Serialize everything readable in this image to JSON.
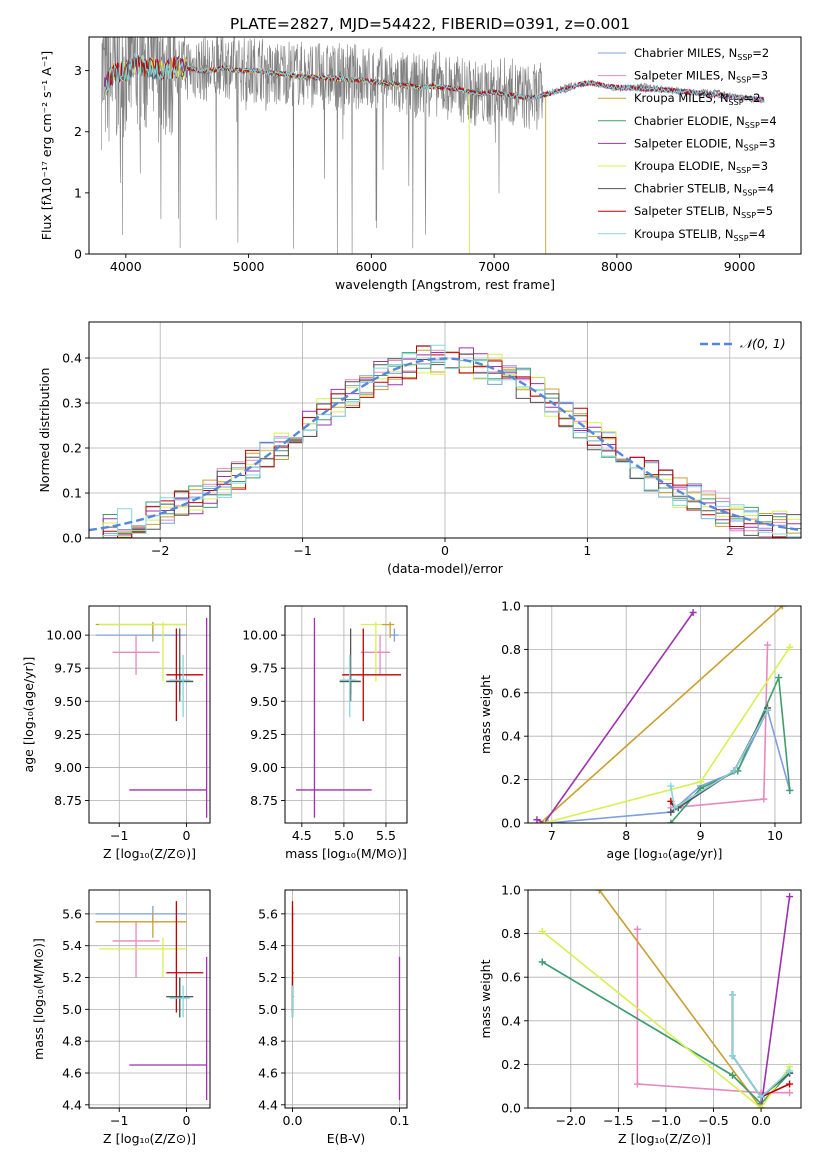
{
  "title": "PLATE=2827, MJD=54422, FIBERID=0391, z=0.001",
  "colors": {
    "Chabrier MILES": "#7f9fe0",
    "Salpeter MILES": "#e888c0",
    "Kroupa MILES": "#c8a030",
    "Chabrier ELODIE": "#3f9f6a",
    "Salpeter ELODIE": "#9f30b0",
    "Kroupa ELODIE": "#d8f050",
    "Chabrier STELIB": "#555555",
    "Salpeter STELIB": "#c00000",
    "Kroupa STELIB": "#80d8e0",
    "data": "#808080",
    "normal": "#5588dd"
  },
  "legend_spectrum": [
    {
      "model": "Chabrier MILES",
      "text": "Chabrier MILES, N",
      "n": "2"
    },
    {
      "model": "Salpeter MILES",
      "text": "Salpeter MILES, N",
      "n": "3"
    },
    {
      "model": "Kroupa MILES",
      "text": "Kroupa MILES, N",
      "n": "2"
    },
    {
      "model": "Chabrier ELODIE",
      "text": "Chabrier ELODIE, N",
      "n": "4"
    },
    {
      "model": "Salpeter ELODIE",
      "text": "Salpeter ELODIE, N",
      "n": "3"
    },
    {
      "model": "Kroupa ELODIE",
      "text": "Kroupa ELODIE, N",
      "n": "3"
    },
    {
      "model": "Chabrier STELIB",
      "text": "Chabrier STELIB, N",
      "n": "4"
    },
    {
      "model": "Salpeter STELIB",
      "text": "Salpeter STELIB, N",
      "n": "5"
    },
    {
      "model": "Kroupa STELIB",
      "text": "Kroupa STELIB, N",
      "n": "4"
    }
  ],
  "legend_subscript": "SSP",
  "legend_normal": "𝒩(0, 1)",
  "chart_data": [
    {
      "id": "spectrum",
      "type": "line",
      "xlabel": "wavelength [Angstrom, rest frame]",
      "ylabel": "Flux [fλ10⁻¹⁷ erg cm⁻² s⁻¹ A⁻¹]",
      "xlim": [
        3700,
        9500
      ],
      "ylim": [
        0,
        3.55
      ],
      "xticks": [
        4000,
        5000,
        6000,
        7000,
        8000,
        9000
      ],
      "yticks": [
        0,
        1,
        2,
        3
      ],
      "data_x": [
        3800,
        3900,
        4000,
        4100,
        4200,
        4300,
        4400,
        4500,
        4600,
        4700,
        4800,
        4900,
        5000,
        5100,
        5200,
        5300,
        5400,
        5500,
        5600,
        5700,
        5800,
        5900,
        6000,
        6100,
        6200,
        6300,
        6400,
        6500,
        6600,
        6700,
        6800,
        6900,
        7000,
        7100,
        7200,
        7300,
        7400,
        7600,
        7800,
        8000,
        8200,
        8400,
        8600,
        8800,
        9000,
        9200
      ],
      "data_y": [
        2.9,
        2.9,
        3.1,
        3.15,
        3.05,
        3.0,
        3.1,
        3.05,
        3.05,
        3.0,
        3.1,
        3.05,
        3.0,
        3.05,
        2.9,
        3.0,
        2.95,
        2.95,
        2.9,
        2.9,
        2.9,
        2.9,
        2.85,
        2.85,
        2.8,
        2.75,
        2.75,
        2.8,
        2.75,
        2.7,
        2.65,
        2.6,
        2.65,
        2.7,
        2.6,
        2.55,
        2.6,
        2.75,
        2.8,
        2.7,
        2.75,
        2.7,
        2.65,
        2.65,
        2.55,
        2.5
      ],
      "model_x": [
        3820,
        3900,
        4000,
        4100,
        4200,
        4300,
        4400,
        4500,
        4600,
        4700,
        4800,
        4900,
        5000,
        5100,
        5200,
        5300,
        5400,
        5500,
        5600,
        5700,
        5800,
        5900,
        6000,
        6100,
        6200,
        6300,
        6400,
        6500,
        6600,
        6700,
        6800,
        6900,
        7000,
        7100,
        7200,
        7300,
        7400,
        7500,
        7600,
        7700,
        7800,
        7900,
        8000,
        8100,
        8200,
        8300,
        8400,
        8500,
        8600,
        8700,
        8800,
        8900,
        9000,
        9100,
        9200
      ],
      "model_y": [
        2.7,
        2.95,
        3.0,
        3.1,
        3.05,
        3.0,
        3.05,
        3.05,
        3.0,
        3.0,
        3.05,
        3.0,
        3.0,
        3.0,
        2.95,
        2.95,
        2.9,
        2.9,
        2.88,
        2.88,
        2.85,
        2.85,
        2.82,
        2.8,
        2.78,
        2.75,
        2.72,
        2.75,
        2.72,
        2.7,
        2.65,
        2.62,
        2.65,
        2.6,
        2.58,
        2.55,
        2.6,
        2.65,
        2.7,
        2.78,
        2.8,
        2.75,
        2.72,
        2.72,
        2.7,
        2.7,
        2.68,
        2.66,
        2.65,
        2.62,
        2.6,
        2.58,
        2.56,
        2.55,
        2.52
      ]
    },
    {
      "id": "residuals",
      "type": "line",
      "xlabel": "(data-model)/error",
      "ylabel": "Normed distribution",
      "xlim": [
        -2.5,
        2.5
      ],
      "ylim": [
        0,
        0.48
      ],
      "xticks": [
        -2,
        -1,
        0,
        1,
        2
      ],
      "yticks": [
        0.0,
        0.1,
        0.2,
        0.3,
        0.4
      ],
      "bin_width": 0.1,
      "normal_curve": {
        "mean": 0,
        "sigma": 1
      }
    },
    {
      "id": "age-vs-Z",
      "type": "scatter",
      "xlabel": "Z [log₁₀(Z/Z⊙)]",
      "ylabel": "age  [log₁₀(age/yr)]",
      "xlim": [
        -1.45,
        0.35
      ],
      "ylim": [
        8.58,
        10.22
      ],
      "xticks": [
        -1,
        0
      ],
      "yticks": [
        8.75,
        9.0,
        9.25,
        9.5,
        9.75,
        10.0
      ]
    },
    {
      "id": "age-vs-mass",
      "type": "scatter",
      "xlabel": "mass [log₁₀(M/M⊙)]",
      "ylabel": "",
      "xlim": [
        4.3,
        5.75
      ],
      "ylim": [
        8.58,
        10.22
      ],
      "xticks": [
        4.5,
        5.0,
        5.5
      ],
      "yticks": [
        8.75,
        9.0,
        9.25,
        9.5,
        9.75,
        10.0
      ]
    },
    {
      "id": "massweight-vs-age",
      "type": "line",
      "xlabel": "age  [log₁₀(age/yr)]",
      "ylabel": "mass weight",
      "xlim": [
        6.68,
        10.35
      ],
      "ylim": [
        0,
        1.0
      ],
      "xticks": [
        7,
        8,
        9,
        10
      ],
      "yticks": [
        0.0,
        0.2,
        0.4,
        0.6,
        0.8,
        1.0
      ]
    },
    {
      "id": "mass-vs-Z",
      "type": "scatter",
      "xlabel": "Z [log₁₀(Z/Z⊙)]",
      "ylabel": "mass [log₁₀(M/M⊙)]",
      "xlim": [
        -1.45,
        0.35
      ],
      "ylim": [
        4.38,
        5.75
      ],
      "xticks": [
        -1,
        0
      ],
      "yticks": [
        4.4,
        4.6,
        4.8,
        5.0,
        5.2,
        5.4,
        5.6
      ]
    },
    {
      "id": "mass-vs-EBV",
      "type": "scatter",
      "xlabel": "E(B-V)",
      "ylabel": "",
      "xlim": [
        -0.007,
        0.107
      ],
      "ylim": [
        4.38,
        5.75
      ],
      "xticks": [
        0.0,
        0.1
      ],
      "yticks": [
        4.4,
        4.6,
        4.8,
        5.0,
        5.2,
        5.4,
        5.6
      ]
    },
    {
      "id": "massweight-vs-Z",
      "type": "line",
      "xlabel": "Z [log₁₀(Z/Z⊙)]",
      "ylabel": "mass weight",
      "xlim": [
        -2.45,
        0.42
      ],
      "ylim": [
        0,
        1.0
      ],
      "xticks": [
        -2.0,
        -1.5,
        -1.0,
        -0.5,
        0.0
      ],
      "yticks": [
        0.0,
        0.2,
        0.4,
        0.6,
        0.8,
        1.0
      ]
    }
  ],
  "models": [
    {
      "name": "Chabrier MILES",
      "age": 10.0,
      "age_lo": 9.95,
      "age_hi": 10.05,
      "Z": -0.5,
      "Z_lo": -1.35,
      "Z_hi": 0.0,
      "mass": 5.6,
      "mass_lo": 5.55,
      "mass_hi": 5.65,
      "ebv": 0.0,
      "ebv_lo": 0.0,
      "ebv_hi": 0.002,
      "ages": [
        6.95,
        8.6,
        9.0,
        9.5,
        9.9,
        10.2
      ],
      "wages": [
        0.0,
        0.05,
        0.17,
        0.24,
        0.52,
        0.15
      ],
      "zs": [
        -2.3,
        -0.3,
        0.0,
        0.3
      ],
      "wzs": [
        0.67,
        0.15,
        0.02,
        0.16
      ]
    },
    {
      "name": "Salpeter MILES",
      "age": 9.87,
      "age_lo": 9.7,
      "age_hi": 10.0,
      "Z": -0.75,
      "Z_lo": -1.1,
      "Z_hi": -0.4,
      "mass": 5.43,
      "mass_lo": 5.2,
      "mass_hi": 5.55,
      "ebv": 0.0,
      "ebv_lo": 0.0,
      "ebv_hi": 0.001,
      "ages": [
        8.6,
        9.85,
        9.9
      ],
      "wages": [
        0.07,
        0.11,
        0.82
      ],
      "zs": [
        -1.3,
        -1.3,
        0.0,
        0.3
      ],
      "wzs": [
        0.82,
        0.11,
        0.07,
        0.07
      ]
    },
    {
      "name": "Kroupa MILES",
      "age": 10.08,
      "age_lo": 9.98,
      "age_hi": 10.1,
      "Z": -0.5,
      "Z_lo": -1.35,
      "Z_hi": 0.0,
      "mass": 5.55,
      "mass_lo": 5.45,
      "mass_hi": 5.6,
      "ebv": 0.0,
      "ebv_lo": 0.0,
      "ebv_hi": 0.001,
      "ages": [
        6.85,
        10.1
      ],
      "wages": [
        0.0,
        1.0
      ],
      "zs": [
        -1.7,
        0.0
      ],
      "wzs": [
        1.0,
        0.0
      ]
    },
    {
      "name": "Chabrier ELODIE",
      "age": 9.65,
      "age_lo": 9.55,
      "age_hi": 9.7,
      "Z": -0.1,
      "Z_lo": -0.3,
      "Z_hi": 0.1,
      "mass": 5.08,
      "mass_lo": 4.95,
      "mass_hi": 5.2,
      "ebv": 0.0,
      "ebv_lo": 0.0,
      "ebv_hi": 0.001,
      "ages": [
        8.6,
        9.0,
        9.5,
        10.05,
        10.2
      ],
      "wages": [
        0.0,
        0.16,
        0.24,
        0.67,
        0.15
      ],
      "zs": [
        -2.3,
        -0.3,
        0.0,
        0.3
      ],
      "wzs": [
        0.67,
        0.15,
        0.02,
        0.16
      ]
    },
    {
      "name": "Salpeter ELODIE",
      "age": 8.83,
      "age_lo": 8.62,
      "age_hi": 10.13,
      "Z": 0.3,
      "Z_lo": -0.85,
      "Z_hi": 0.3,
      "mass": 4.65,
      "mass_lo": 4.43,
      "mass_hi": 5.33,
      "ebv": 0.1,
      "ebv_lo": 0.1,
      "ebv_hi": 0.1,
      "ages": [
        6.8,
        6.9,
        8.9
      ],
      "wages": [
        0.015,
        0.0,
        0.97
      ],
      "zs": [
        0.0,
        0.3
      ],
      "wzs": [
        0.0,
        0.97
      ]
    },
    {
      "name": "Kroupa ELODIE",
      "age": 10.08,
      "age_lo": 9.65,
      "age_hi": 10.1,
      "Z": -0.35,
      "Z_lo": -1.3,
      "Z_hi": 0.0,
      "mass": 5.38,
      "mass_lo": 5.2,
      "mass_hi": 5.45,
      "ebv": 0.0,
      "ebv_lo": 0.0,
      "ebv_hi": 0.001,
      "ages": [
        6.9,
        9.0,
        10.2
      ],
      "wages": [
        0.0,
        0.19,
        0.81
      ],
      "zs": [
        -2.3,
        0.0,
        0.3
      ],
      "wzs": [
        0.81,
        0.0,
        0.19
      ]
    },
    {
      "name": "Chabrier STELIB",
      "age": 9.65,
      "age_lo": 9.5,
      "age_hi": 10.05,
      "Z": -0.1,
      "Z_lo": -0.3,
      "Z_hi": 0.1,
      "mass": 5.08,
      "mass_lo": 4.95,
      "mass_hi": 5.2,
      "ebv": 0.0,
      "ebv_lo": 0.0,
      "ebv_hi": 0.001,
      "ages": [
        8.6,
        8.7,
        9.45,
        9.9
      ],
      "wages": [
        0.05,
        0.07,
        0.24,
        0.53
      ],
      "zs": [
        -0.3,
        -0.3,
        0.0,
        0.3
      ],
      "wzs": [
        0.52,
        0.24,
        0.05,
        0.16
      ]
    },
    {
      "name": "Salpeter STELIB",
      "age": 9.7,
      "age_lo": 9.35,
      "age_hi": 10.05,
      "Z": -0.15,
      "Z_lo": -0.3,
      "Z_hi": 0.25,
      "mass": 5.23,
      "mass_lo": 4.98,
      "mass_hi": 5.68,
      "ebv": 0.0,
      "ebv_lo": 0.0,
      "ebv_hi": 0.001,
      "ages": [
        8.6,
        8.65,
        9.45,
        9.9
      ],
      "wages": [
        0.1,
        0.07,
        0.24,
        0.52
      ],
      "zs": [
        -0.3,
        -0.3,
        0.0,
        0.3
      ],
      "wzs": [
        0.52,
        0.24,
        0.05,
        0.11
      ]
    },
    {
      "name": "Kroupa STELIB",
      "age": 9.66,
      "age_lo": 9.38,
      "age_hi": 9.85,
      "Z": -0.05,
      "Z_lo": -0.25,
      "Z_hi": 0.05,
      "mass": 5.07,
      "mass_lo": 4.95,
      "mass_hi": 5.15,
      "ebv": 0.0,
      "ebv_lo": 0.0,
      "ebv_hi": 0.001,
      "ages": [
        8.6,
        8.65,
        9.45,
        9.9
      ],
      "wages": [
        0.17,
        0.07,
        0.24,
        0.52
      ],
      "zs": [
        -0.3,
        -0.3,
        0.0,
        0.3
      ],
      "wzs": [
        0.52,
        0.24,
        0.05,
        0.17
      ]
    }
  ]
}
